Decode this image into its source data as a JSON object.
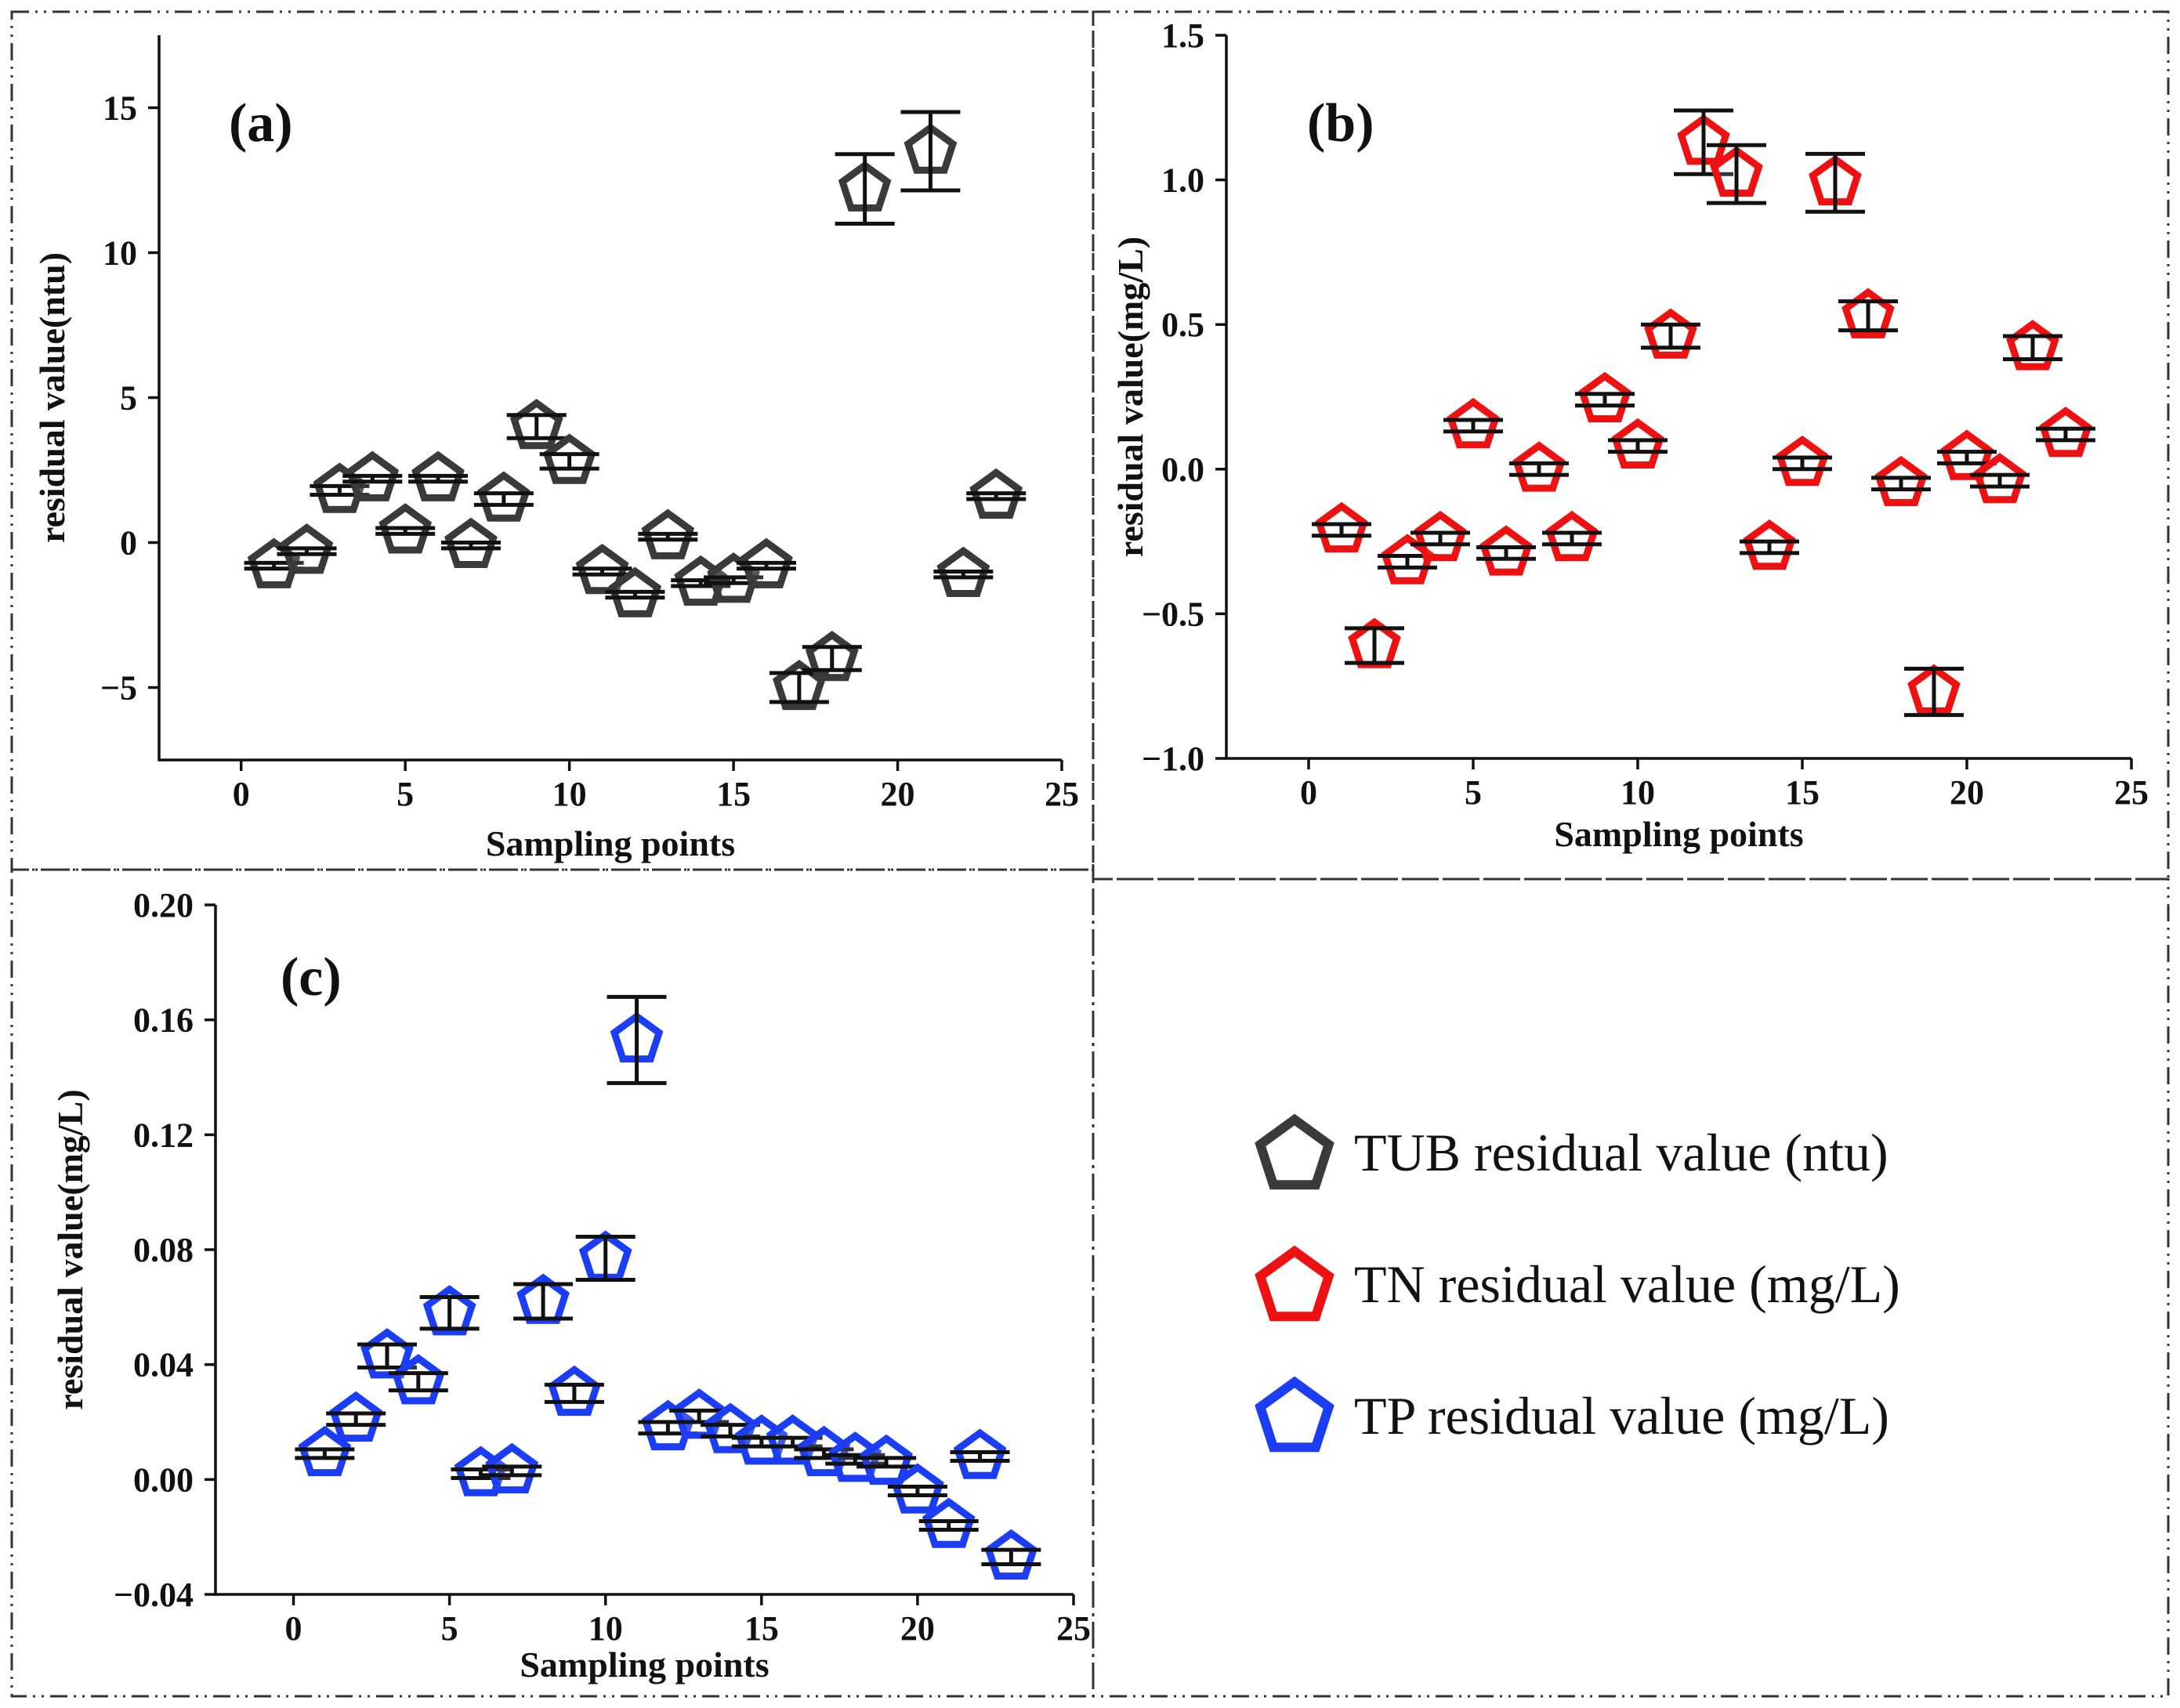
{
  "legend": {
    "items": [
      {
        "label": "TUB residual value (ntu)",
        "color": "#3a3a3a"
      },
      {
        "label": "TN residual value (mg/L)",
        "color": "#ee1111"
      },
      {
        "label": "TP residual value (mg/L)",
        "color": "#1a3df5"
      }
    ]
  },
  "chart_data": [
    {
      "type": "scatter",
      "panel_label": "(a)",
      "title": "",
      "xlabel": "Sampling points",
      "ylabel": "residual value(ntu)",
      "xlim": [
        -2.5,
        25
      ],
      "ylim": [
        -7.5,
        17.5
      ],
      "xticks": [
        0,
        5,
        10,
        15,
        20,
        25
      ],
      "yticks": [
        -5,
        0,
        5,
        10,
        15
      ],
      "xtick_labels": [
        "0",
        "5",
        "10",
        "15",
        "20",
        "25"
      ],
      "ytick_labels": [
        "−5",
        "0",
        "5",
        "10",
        "15"
      ],
      "series": [
        {
          "name": "TUB residual value (ntu)",
          "color": "#3a3a3a",
          "x": [
            1,
            2,
            3,
            4,
            5,
            6,
            7,
            8,
            9,
            10,
            11,
            12,
            13,
            14,
            15,
            16,
            17,
            18,
            19,
            20,
            21,
            22,
            23
          ],
          "y": [
            -0.8,
            -0.3,
            1.8,
            2.2,
            0.4,
            2.2,
            -0.1,
            1.5,
            4.0,
            2.8,
            -1.0,
            -1.8,
            0.2,
            -1.4,
            -1.3,
            -0.8,
            -5.0,
            -4.0,
            12.2,
            null,
            13.5,
            -1.1,
            1.6
          ],
          "err": [
            0.1,
            0.1,
            0.15,
            0.1,
            0.1,
            0.1,
            0.1,
            0.2,
            0.4,
            0.25,
            0.1,
            0.1,
            0.1,
            0.1,
            0.1,
            0.1,
            0.5,
            0.4,
            1.2,
            null,
            1.35,
            0.1,
            0.1
          ]
        }
      ]
    },
    {
      "type": "scatter",
      "panel_label": "(b)",
      "title": "",
      "xlabel": "Sampling points",
      "ylabel": "residual value(mg/L)",
      "xlim": [
        -2.5,
        25
      ],
      "ylim": [
        -1.0,
        1.5
      ],
      "xticks": [
        0,
        5,
        10,
        15,
        20,
        25
      ],
      "yticks": [
        -1.0,
        -0.5,
        0.0,
        0.5,
        1.0,
        1.5
      ],
      "xtick_labels": [
        "0",
        "5",
        "10",
        "15",
        "20",
        "25"
      ],
      "ytick_labels": [
        "−1.0",
        "−0.5",
        "0.0",
        "0.5",
        "1.0",
        "1.5"
      ],
      "series": [
        {
          "name": "TN residual value (mg/L)",
          "color": "#ee1111",
          "x": [
            1,
            2,
            3,
            4,
            5,
            6,
            7,
            8,
            9,
            10,
            11,
            12,
            13,
            14,
            15,
            16,
            17,
            18,
            19,
            20,
            21,
            22,
            23
          ],
          "y": [
            -0.21,
            -0.61,
            -0.32,
            -0.24,
            0.15,
            -0.29,
            0.0,
            -0.24,
            0.24,
            0.08,
            0.46,
            1.13,
            1.02,
            -0.27,
            0.02,
            0.99,
            0.53,
            -0.05,
            -0.77,
            0.04,
            -0.04,
            0.42,
            0.12
          ],
          "err": [
            0.02,
            0.06,
            0.02,
            0.02,
            0.02,
            0.02,
            0.02,
            0.02,
            0.02,
            0.02,
            0.04,
            0.11,
            0.1,
            0.02,
            0.02,
            0.1,
            0.05,
            0.02,
            0.08,
            0.02,
            0.02,
            0.04,
            0.02
          ]
        }
      ]
    },
    {
      "type": "scatter",
      "panel_label": "(c)",
      "title": "",
      "xlabel": "Sampling points",
      "ylabel": "residual value(mg/L)",
      "xlim": [
        -2.5,
        25
      ],
      "ylim": [
        -0.04,
        0.2
      ],
      "xticks": [
        0,
        5,
        10,
        15,
        20,
        25
      ],
      "yticks": [
        -0.04,
        0.0,
        0.04,
        0.08,
        0.12,
        0.16,
        0.2
      ],
      "xtick_labels": [
        "0",
        "5",
        "10",
        "15",
        "20",
        "25"
      ],
      "ytick_labels": [
        "−0.04",
        "0.00",
        "0.04",
        "0.08",
        "0.12",
        "0.16",
        "0.20"
      ],
      "series": [
        {
          "name": "TP residual value (mg/L)",
          "color": "#1a3df5",
          "x": [
            1,
            2,
            3,
            4,
            5,
            6,
            7,
            8,
            9,
            10,
            11,
            12,
            13,
            14,
            15,
            16,
            17,
            18,
            19,
            20,
            21,
            22,
            23
          ],
          "y": [
            0.009,
            0.021,
            0.043,
            0.034,
            0.058,
            0.002,
            0.003,
            0.062,
            0.03,
            0.077,
            0.153,
            0.018,
            0.022,
            0.017,
            0.013,
            0.013,
            0.009,
            0.007,
            0.006,
            -0.004,
            -0.016,
            0.008,
            -0.027
          ],
          "err": [
            0.0015,
            0.002,
            0.004,
            0.003,
            0.0055,
            0.0015,
            0.0015,
            0.006,
            0.003,
            0.0075,
            0.015,
            0.002,
            0.002,
            0.002,
            0.0015,
            0.0015,
            0.0015,
            0.0015,
            0.0015,
            0.0015,
            0.0015,
            0.0015,
            0.0025
          ]
        }
      ]
    }
  ]
}
